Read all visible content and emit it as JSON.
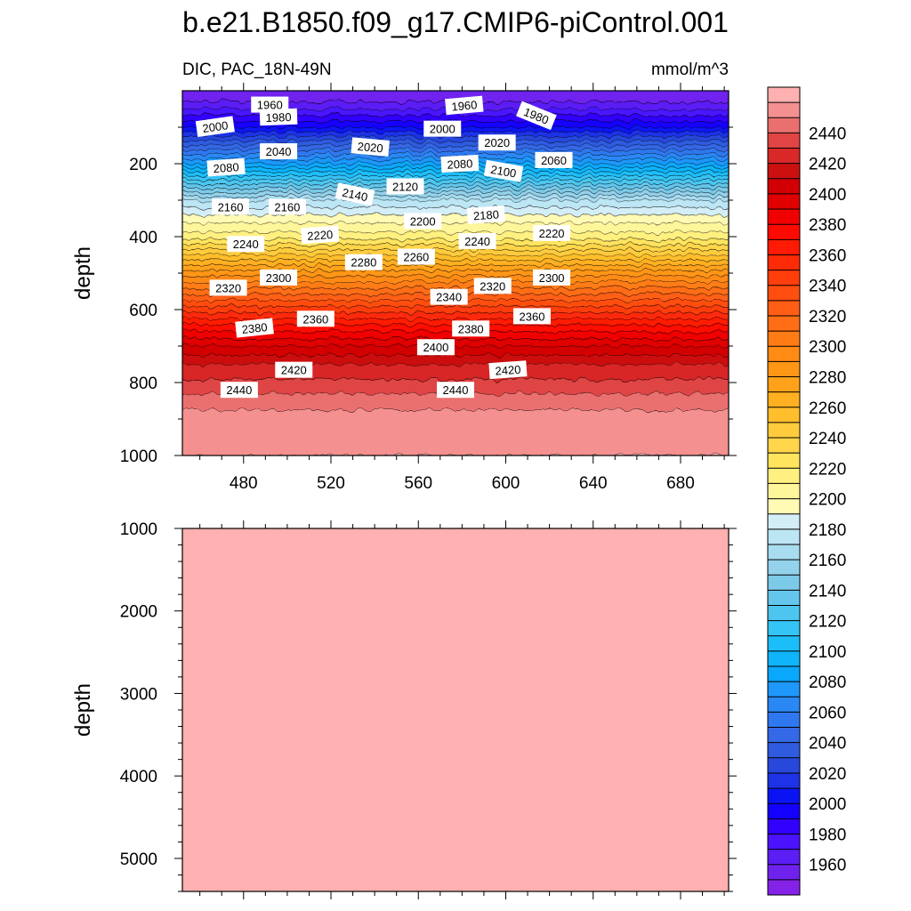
{
  "chart_data": {
    "type": "contour",
    "title": "b.e21.B1850.f09_g17.CMIP6-piControl.001",
    "variable_label": "DIC, PAC_18N-49N",
    "units": "mmol/m^3",
    "x_ticks": [
      480,
      520,
      560,
      600,
      640,
      680
    ],
    "xlim": [
      452,
      702
    ],
    "upper_panel": {
      "ylabel": "depth",
      "ylim": [
        0,
        1000
      ],
      "y_ticks": [
        200,
        400,
        600,
        800,
        1000
      ]
    },
    "lower_panel": {
      "ylabel": "depth",
      "ylim": [
        1000,
        5400
      ],
      "y_ticks": [
        1000,
        2000,
        3000,
        4000,
        5000
      ]
    },
    "depth_profile": [
      {
        "depth": 0,
        "value": 1950
      },
      {
        "depth": 20,
        "value": 1955
      },
      {
        "depth": 50,
        "value": 1970
      },
      {
        "depth": 100,
        "value": 2000
      },
      {
        "depth": 150,
        "value": 2040
      },
      {
        "depth": 200,
        "value": 2080
      },
      {
        "depth": 250,
        "value": 2125
      },
      {
        "depth": 300,
        "value": 2170
      },
      {
        "depth": 350,
        "value": 2195
      },
      {
        "depth": 400,
        "value": 2215
      },
      {
        "depth": 450,
        "value": 2250
      },
      {
        "depth": 500,
        "value": 2285
      },
      {
        "depth": 550,
        "value": 2315
      },
      {
        "depth": 600,
        "value": 2345
      },
      {
        "depth": 650,
        "value": 2375
      },
      {
        "depth": 700,
        "value": 2400
      },
      {
        "depth": 750,
        "value": 2420
      },
      {
        "depth": 800,
        "value": 2432
      },
      {
        "depth": 850,
        "value": 2445
      },
      {
        "depth": 900,
        "value": 2455
      },
      {
        "depth": 1000,
        "value": 2460
      }
    ],
    "contour_labels": [
      {
        "text": "1960",
        "x": 492,
        "depth": 38
      },
      {
        "text": "1980",
        "x": 496,
        "depth": 72
      },
      {
        "text": "2000",
        "x": 467,
        "depth": 98
      },
      {
        "text": "2040",
        "x": 496,
        "depth": 166
      },
      {
        "text": "2020",
        "x": 538,
        "depth": 154
      },
      {
        "text": "2080",
        "x": 472,
        "depth": 210
      },
      {
        "text": "2160",
        "x": 474,
        "depth": 318
      },
      {
        "text": "2160",
        "x": 500,
        "depth": 318
      },
      {
        "text": "2140",
        "x": 531,
        "depth": 284
      },
      {
        "text": "2120",
        "x": 554,
        "depth": 262
      },
      {
        "text": "2000",
        "x": 571,
        "depth": 104
      },
      {
        "text": "2080",
        "x": 579,
        "depth": 200
      },
      {
        "text": "1960",
        "x": 581,
        "depth": 40
      },
      {
        "text": "2020",
        "x": 596,
        "depth": 142
      },
      {
        "text": "2100",
        "x": 599,
        "depth": 220
      },
      {
        "text": "1980",
        "x": 614,
        "depth": 68
      },
      {
        "text": "2060",
        "x": 622,
        "depth": 190
      },
      {
        "text": "2200",
        "x": 562,
        "depth": 357
      },
      {
        "text": "2180",
        "x": 591,
        "depth": 340
      },
      {
        "text": "2240",
        "x": 481,
        "depth": 420
      },
      {
        "text": "2220",
        "x": 515,
        "depth": 395
      },
      {
        "text": "2240",
        "x": 587,
        "depth": 412
      },
      {
        "text": "2220",
        "x": 621,
        "depth": 390
      },
      {
        "text": "2280",
        "x": 535,
        "depth": 470
      },
      {
        "text": "2260",
        "x": 559,
        "depth": 455
      },
      {
        "text": "2300",
        "x": 496,
        "depth": 512
      },
      {
        "text": "2320",
        "x": 473,
        "depth": 540
      },
      {
        "text": "2300",
        "x": 621,
        "depth": 512
      },
      {
        "text": "2320",
        "x": 594,
        "depth": 535
      },
      {
        "text": "2340",
        "x": 574,
        "depth": 565
      },
      {
        "text": "2360",
        "x": 513,
        "depth": 625
      },
      {
        "text": "2360",
        "x": 612,
        "depth": 618
      },
      {
        "text": "2380",
        "x": 485,
        "depth": 650
      },
      {
        "text": "2380",
        "x": 584,
        "depth": 652
      },
      {
        "text": "2400",
        "x": 568,
        "depth": 703
      },
      {
        "text": "2420",
        "x": 503,
        "depth": 765
      },
      {
        "text": "2420",
        "x": 601,
        "depth": 765
      },
      {
        "text": "2440",
        "x": 478,
        "depth": 820
      },
      {
        "text": "2440",
        "x": 577,
        "depth": 820
      }
    ],
    "colorbar": {
      "min": 1940,
      "max": 2460,
      "step": 10,
      "labels": [
        2440,
        2420,
        2400,
        2380,
        2360,
        2340,
        2320,
        2300,
        2280,
        2260,
        2240,
        2220,
        2200,
        2180,
        2160,
        2140,
        2120,
        2100,
        2080,
        2060,
        2040,
        2020,
        2000,
        1980,
        1960
      ],
      "colors": [
        "#8522e8",
        "#6f22ee",
        "#5b1ef5",
        "#4a12ff",
        "#3200ff",
        "#1400ff",
        "#0a14f2",
        "#1e32e6",
        "#2848dc",
        "#2f5bdf",
        "#3468e6",
        "#2f78ef",
        "#2a88f5",
        "#1e98fa",
        "#0aa8fc",
        "#0fb4fa",
        "#1cbefa",
        "#34c4f5",
        "#4cc6ee",
        "#64c6ec",
        "#7ccae8",
        "#94d2ec",
        "#a8dcf0",
        "#bde6f5",
        "#d4eef8",
        "#fffab4",
        "#fff59a",
        "#fff080",
        "#ffe45e",
        "#ffd54a",
        "#ffcb3c",
        "#ffbe2c",
        "#ffb020",
        "#ffa21a",
        "#ff9616",
        "#ff8a14",
        "#ff7c14",
        "#ff6e14",
        "#ff5e14",
        "#ff4e10",
        "#ff3e0c",
        "#ff2a08",
        "#ff1a04",
        "#ff0a00",
        "#f00000",
        "#e00000",
        "#d20004",
        "#cc1010",
        "#d82828",
        "#e04444",
        "#ea7070",
        "#f49090",
        "#ffb0b0"
      ]
    }
  }
}
